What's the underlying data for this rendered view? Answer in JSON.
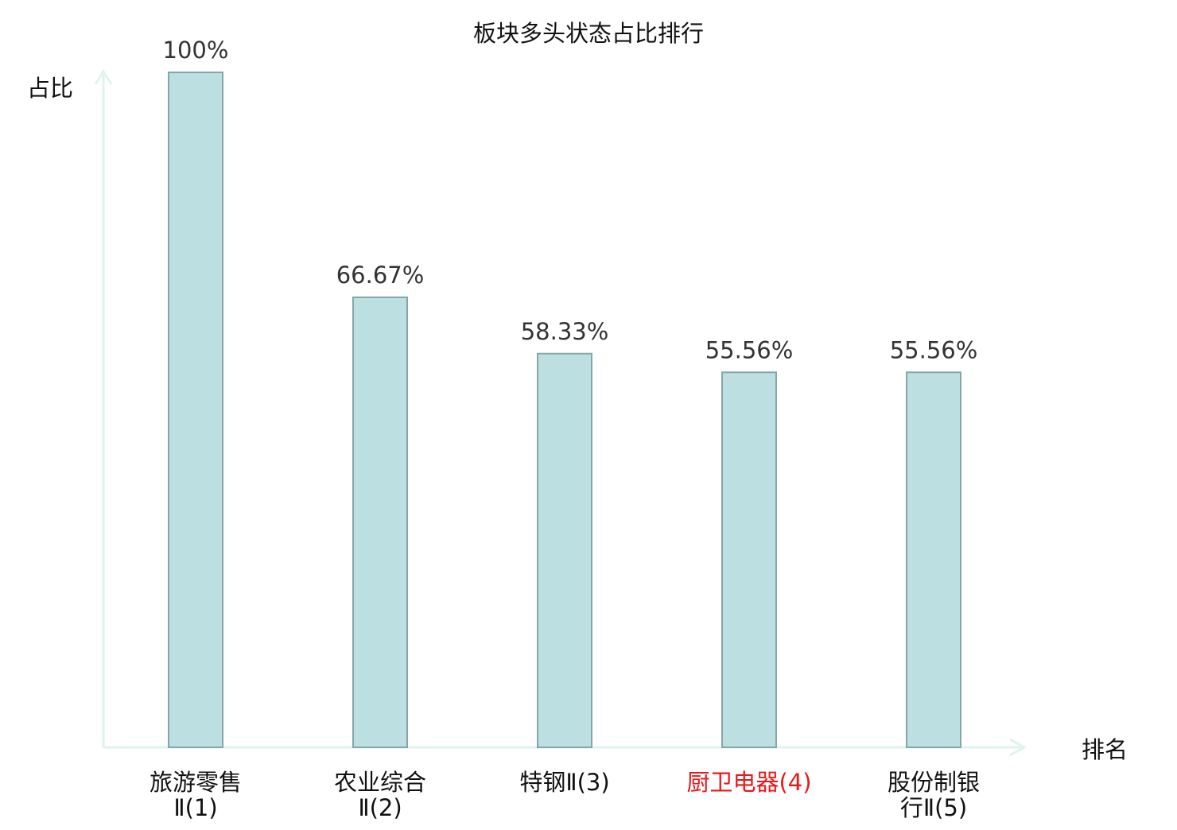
{
  "chart_data": {
    "type": "bar",
    "title": "板块多头状态占比排行",
    "ylabel": "占比",
    "xlabel": "排名",
    "ylim": [
      0,
      100
    ],
    "grid": false,
    "categories": [
      [
        "旅游零售",
        "Ⅱ(1)"
      ],
      [
        "农业综合",
        "Ⅱ(2)"
      ],
      [
        "特钢Ⅱ(3)"
      ],
      [
        "厨卫电器(4)"
      ],
      [
        "股份制银",
        "行Ⅱ(5)"
      ]
    ],
    "values": [
      100,
      66.67,
      58.33,
      55.56,
      55.56
    ],
    "value_labels": [
      "100%",
      "66.67%",
      "58.33%",
      "55.56%",
      "55.56%"
    ],
    "highlight_index": 3,
    "colors": {
      "bar_fill": "#bce0e1",
      "bar_stroke": "#86a6a6",
      "axis": "#dff3ef",
      "label_text": "#333333",
      "highlight_text": "#e8181b",
      "title_text": "#111111"
    }
  }
}
